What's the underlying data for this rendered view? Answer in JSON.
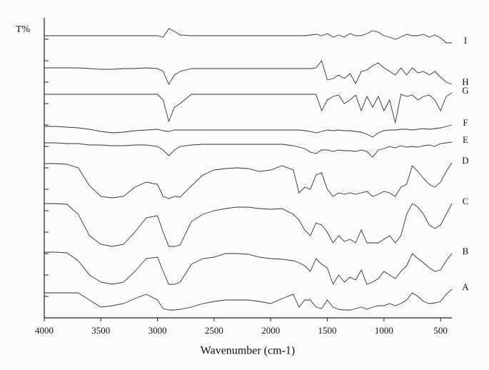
{
  "chart_data": {
    "type": "line",
    "x_label": "Wavenumber (cm-1)",
    "y_label": "T%",
    "x": [
      4000,
      3900,
      3800,
      3700,
      3600,
      3500,
      3400,
      3300,
      3200,
      3100,
      3000,
      2950,
      2900,
      2850,
      2800,
      2700,
      2600,
      2500,
      2400,
      2300,
      2200,
      2100,
      2000,
      1900,
      1800,
      1750,
      1700,
      1650,
      1600,
      1550,
      1500,
      1450,
      1400,
      1350,
      1300,
      1250,
      1200,
      1150,
      1100,
      1050,
      1000,
      950,
      900,
      850,
      800,
      750,
      700,
      650,
      600,
      550,
      500,
      450,
      400
    ],
    "xlim": [
      4000,
      400
    ],
    "xticks": [
      4000,
      3500,
      3000,
      2500,
      2000,
      1500,
      1000,
      500
    ],
    "ylim": [
      0,
      420
    ],
    "yticks": [
      30,
      60,
      90,
      120,
      150,
      180,
      210,
      240,
      270,
      300,
      330,
      360,
      390
    ],
    "series": [
      {
        "name": "I",
        "color": "#333333",
        "values": [
          395,
          395,
          395,
          395,
          395,
          395,
          395,
          395,
          395,
          395,
          395,
          393,
          405,
          401,
          396,
          395,
          395,
          395,
          395,
          395,
          395,
          395,
          395,
          395,
          395,
          395,
          395,
          396,
          397,
          395,
          398,
          393,
          396,
          393,
          398,
          395,
          395,
          398,
          402,
          400,
          395,
          393,
          390,
          393,
          397,
          395,
          395,
          397,
          393,
          396,
          392,
          385,
          385
        ]
      },
      {
        "name": "H",
        "color": "#333333",
        "values": [
          350,
          350,
          350,
          350,
          349,
          348,
          348,
          349,
          349,
          350,
          349,
          345,
          327,
          340,
          345,
          349,
          349,
          349,
          349,
          349,
          349,
          349,
          349,
          349,
          349,
          349,
          349,
          349,
          350,
          360,
          333,
          335,
          340,
          335,
          342,
          328,
          345,
          347,
          353,
          357,
          350,
          345,
          340,
          350,
          340,
          350,
          343,
          345,
          340,
          345,
          337,
          330,
          327
        ]
      },
      {
        "name": "G",
        "color": "#333333",
        "values": [
          313,
          313,
          313,
          313,
          313,
          313,
          313,
          313,
          313,
          313,
          313,
          305,
          275,
          295,
          300,
          313,
          313,
          313,
          313,
          313,
          313,
          313,
          313,
          313,
          313,
          313,
          313,
          313,
          313,
          290,
          305,
          310,
          312,
          300,
          305,
          312,
          290,
          310,
          295,
          310,
          290,
          305,
          273,
          313,
          310,
          312,
          305,
          310,
          312,
          305,
          290,
          310,
          315
        ]
      },
      {
        "name": "F",
        "color": "#333333",
        "values": [
          268,
          268,
          267,
          266,
          264,
          261,
          259,
          260,
          262,
          263,
          264,
          262,
          261,
          263,
          263,
          263,
          263,
          263,
          263,
          263,
          263,
          263,
          263,
          263,
          263,
          263,
          262,
          261,
          259,
          261,
          263,
          262,
          263,
          262,
          262,
          261,
          260,
          257,
          253,
          259,
          262,
          263,
          263,
          264,
          264,
          263,
          264,
          265,
          264,
          265,
          266,
          268,
          270
        ]
      },
      {
        "name": "E",
        "color": "#333333",
        "values": [
          245,
          245,
          244,
          244,
          242,
          242,
          241,
          241,
          242,
          242,
          240,
          235,
          227,
          235,
          240,
          242,
          243,
          243,
          243,
          243,
          243,
          243,
          243,
          243,
          241,
          239,
          237,
          232,
          230,
          235,
          235,
          233,
          235,
          234,
          234,
          233,
          235,
          233,
          225,
          235,
          237,
          240,
          238,
          241,
          239,
          240,
          239,
          241,
          242,
          240,
          244,
          245,
          246
        ]
      },
      {
        "name": "D",
        "color": "#333333",
        "values": [
          216,
          216,
          215,
          210,
          185,
          170,
          168,
          170,
          183,
          190,
          187,
          170,
          167,
          170,
          169,
          185,
          200,
          207,
          209,
          210,
          209,
          205,
          207,
          213,
          207,
          175,
          183,
          180,
          200,
          203,
          180,
          170,
          175,
          173,
          175,
          173,
          175,
          177,
          170,
          173,
          177,
          175,
          170,
          183,
          187,
          213,
          205,
          195,
          187,
          183,
          190,
          205,
          217
        ]
      },
      {
        "name": "C",
        "color": "#333333",
        "values": [
          160,
          160,
          159,
          145,
          115,
          103,
          100,
          103,
          120,
          140,
          143,
          120,
          100,
          100,
          102,
          135,
          145,
          150,
          153,
          155,
          155,
          153,
          152,
          153,
          145,
          137,
          123,
          115,
          133,
          130,
          120,
          105,
          115,
          107,
          110,
          105,
          123,
          105,
          105,
          105,
          110,
          115,
          105,
          115,
          145,
          160,
          155,
          145,
          130,
          125,
          130,
          145,
          160
        ]
      },
      {
        "name": "B",
        "color": "#333333",
        "values": [
          92,
          92,
          91,
          80,
          60,
          50,
          47,
          50,
          65,
          83,
          85,
          65,
          47,
          47,
          50,
          75,
          83,
          85,
          90,
          90,
          89,
          85,
          83,
          82,
          80,
          77,
          73,
          65,
          83,
          75,
          70,
          47,
          60,
          50,
          57,
          53,
          67,
          47,
          50,
          55,
          65,
          60,
          55,
          65,
          73,
          90,
          83,
          77,
          70,
          65,
          67,
          80,
          90
        ]
      },
      {
        "name": "A",
        "color": "#333333",
        "values": [
          35,
          35,
          35,
          35,
          25,
          15,
          17,
          20,
          27,
          33,
          25,
          13,
          11,
          11,
          12,
          15,
          20,
          23,
          25,
          25,
          25,
          23,
          20,
          27,
          33,
          15,
          25,
          25,
          15,
          13,
          25,
          15,
          12,
          11,
          11,
          13,
          15,
          12,
          15,
          17,
          17,
          20,
          17,
          20,
          25,
          35,
          30,
          23,
          20,
          21,
          23,
          33,
          40
        ]
      }
    ]
  }
}
